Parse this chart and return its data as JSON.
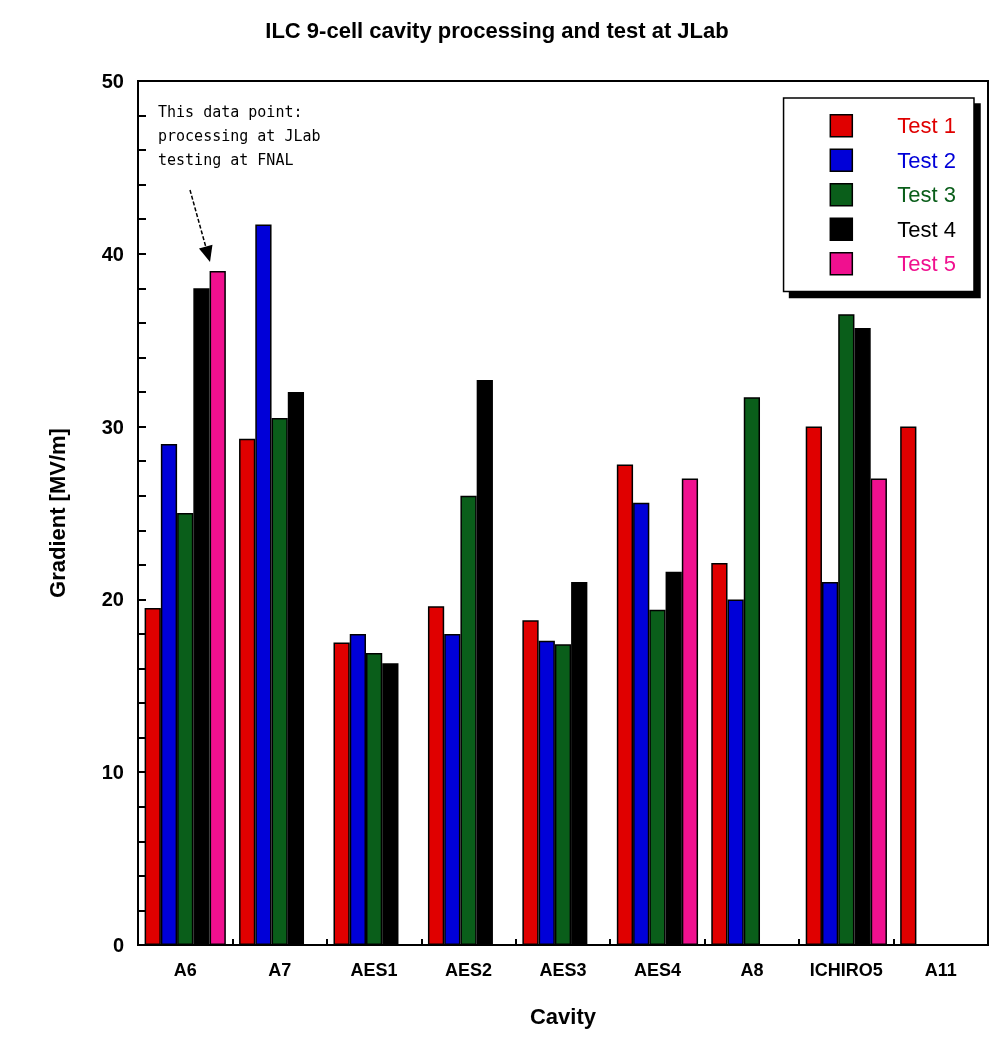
{
  "chart_data": {
    "type": "bar",
    "title": "ILC 9-cell cavity processing and test at JLab",
    "xlabel": "Cavity",
    "ylabel": "Gradient [MV/m]",
    "categories": [
      "A6",
      "A7",
      "AES1",
      "AES2",
      "AES3",
      "AES4",
      "A8",
      "ICHIRO5",
      "A11"
    ],
    "series": [
      {
        "name": "Test 1",
        "color": "#e00000",
        "values": [
          19.5,
          29.3,
          17.5,
          19.6,
          18.8,
          27.8,
          22.1,
          30.0,
          30.0
        ]
      },
      {
        "name": "Test 2",
        "color": "#0000d8",
        "values": [
          29.0,
          41.7,
          18.0,
          18.0,
          17.6,
          25.6,
          20.0,
          21.0,
          null
        ]
      },
      {
        "name": "Test 3",
        "color": "#0a5e1a",
        "values": [
          25.0,
          30.5,
          16.9,
          26.0,
          17.4,
          19.4,
          31.7,
          36.5,
          null
        ]
      },
      {
        "name": "Test 4",
        "color": "#000000",
        "values": [
          38.0,
          32.0,
          16.3,
          32.7,
          21.0,
          21.6,
          null,
          35.7,
          null
        ]
      },
      {
        "name": "Test 5",
        "color": "#f0108f",
        "values": [
          39.0,
          null,
          null,
          null,
          null,
          27.0,
          null,
          27.0,
          null
        ]
      }
    ],
    "ylim": [
      0,
      50
    ],
    "yticks": [
      0,
      {
        "value": 2,
        "label": null
      },
      {
        "value": 4,
        "label": null
      },
      {
        "value": 6,
        "label": null
      },
      {
        "value": 8,
        "label": null
      },
      10,
      {
        "value": 12,
        "label": null
      },
      {
        "value": 14,
        "label": null
      },
      {
        "value": 16,
        "label": null
      },
      {
        "value": 18,
        "label": null
      },
      20,
      {
        "value": 22,
        "label": null
      },
      {
        "value": 24,
        "label": null
      },
      {
        "value": 26,
        "label": null
      },
      {
        "value": 28,
        "label": null
      },
      30,
      {
        "value": 32,
        "label": null
      },
      {
        "value": 34,
        "label": null
      },
      {
        "value": 36,
        "label": null
      },
      {
        "value": 38,
        "label": null
      },
      40,
      {
        "value": 42,
        "label": null
      },
      {
        "value": 44,
        "label": null
      },
      {
        "value": 46,
        "label": null
      },
      {
        "value": 48,
        "label": null
      },
      50
    ],
    "annotations": [
      "This data point:\nprocessing at JLab\ntesting at FNAL"
    ],
    "grid": false,
    "legend": "top right"
  }
}
